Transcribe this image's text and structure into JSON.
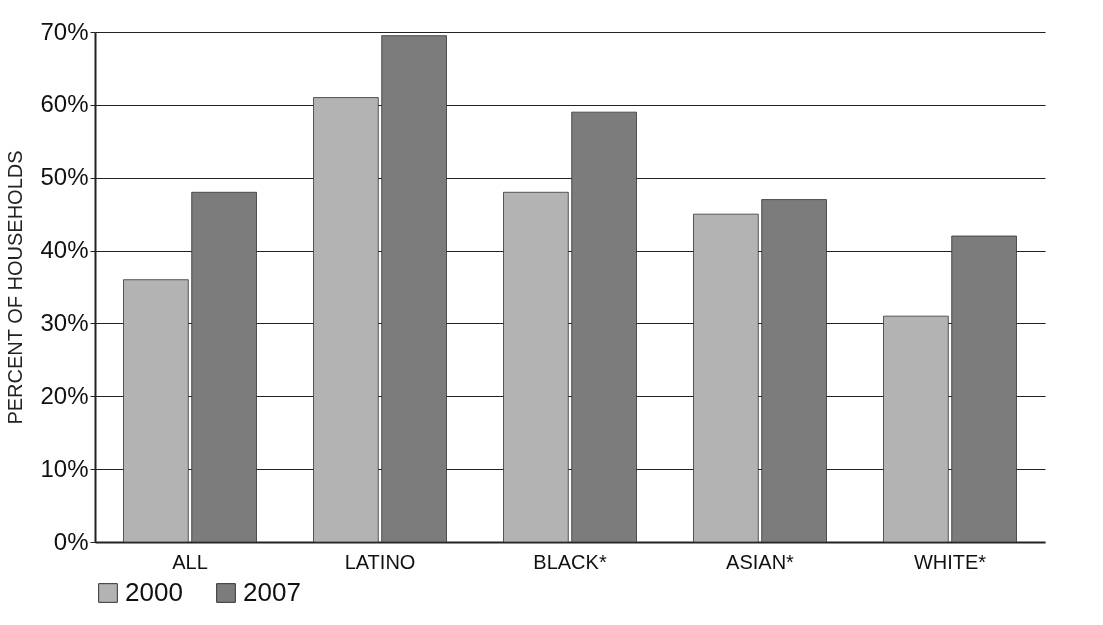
{
  "chart_data": {
    "type": "bar",
    "ylabel": "PERCENT OF HOUSEHOLDS",
    "categories": [
      "ALL",
      "LATINO",
      "BLACK*",
      "ASIAN*",
      "WHITE*"
    ],
    "series": [
      {
        "name": "2000",
        "color": "#b3b3b3",
        "values": [
          36,
          61,
          48,
          45,
          31
        ]
      },
      {
        "name": "2007",
        "color": "#7c7c7c",
        "values": [
          48,
          69.5,
          59,
          47,
          42
        ]
      }
    ],
    "ylim": [
      0,
      70
    ],
    "yticks": [
      {
        "value": 0,
        "label": "0%"
      },
      {
        "value": 10,
        "label": "10%"
      },
      {
        "value": 20,
        "label": "20%"
      },
      {
        "value": 30,
        "label": "30%"
      },
      {
        "value": 40,
        "label": "40%"
      },
      {
        "value": 50,
        "label": "50%"
      },
      {
        "value": 60,
        "label": "60%"
      },
      {
        "value": 70,
        "label": "70%"
      }
    ],
    "grid": "y",
    "legend": "bottom"
  }
}
